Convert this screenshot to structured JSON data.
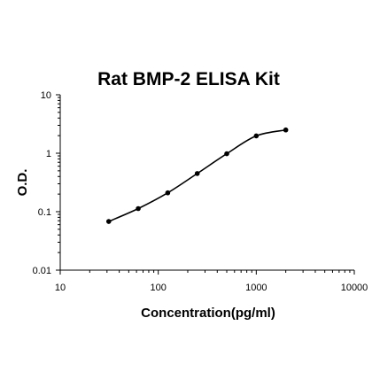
{
  "chart_data": {
    "type": "scatter",
    "title": "Rat BMP-2 ELISA Kit",
    "xlabel": "Concentration(pg/ml)",
    "ylabel": "O.D.",
    "xscale": "log",
    "yscale": "log",
    "xlim": [
      10,
      10000
    ],
    "ylim": [
      0.01,
      10
    ],
    "xticks": [
      "10",
      "100",
      "1000",
      "10000"
    ],
    "yticks": [
      "10",
      "1",
      "0.1",
      "0.01"
    ],
    "grid": false,
    "legend": "none",
    "series": [
      {
        "x": [
          31.25,
          62.5,
          125,
          250,
          500,
          1000,
          2000
        ],
        "y": [
          0.068,
          0.113,
          0.21,
          0.45,
          0.98,
          1.98,
          2.5
        ]
      }
    ],
    "colors": {
      "line": "#000000",
      "marker": "#000000"
    }
  }
}
